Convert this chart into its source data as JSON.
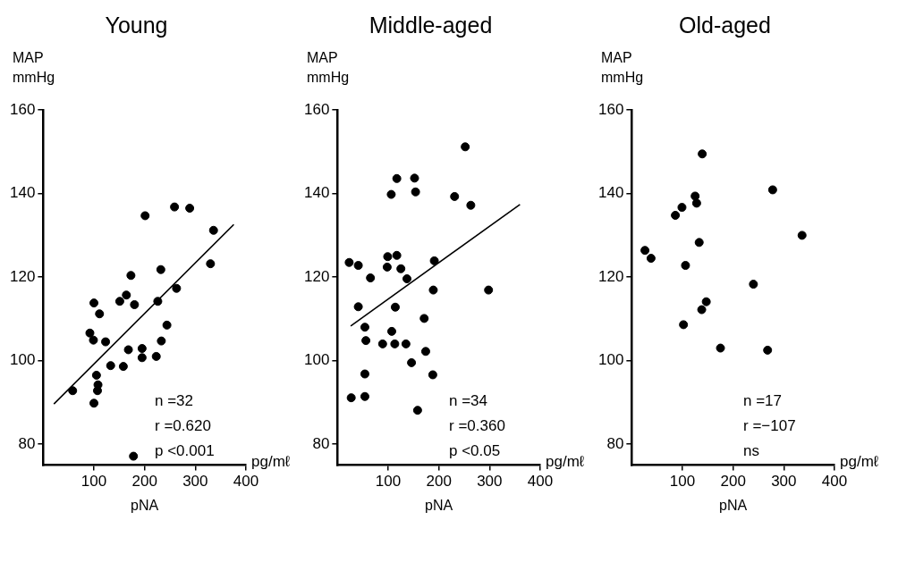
{
  "chart_data": [
    {
      "type": "scatter",
      "title": "Young",
      "ylabel": "MAP mmHg",
      "xlabel": "pNA",
      "annotations": [
        "pg/mℓ",
        "n =32",
        "r =0.620",
        "p <0.001"
      ],
      "xlim": [
        0,
        400
      ],
      "xticks": [
        100,
        200,
        300,
        400
      ],
      "ylim": [
        75,
        160
      ],
      "yticks": [
        80,
        100,
        120,
        140,
        160
      ],
      "grid": false,
      "legend": false,
      "series": [
        {
          "marker": "circle",
          "color": "#000000",
          "x": [
            58,
            100,
            105,
            108,
            107,
            100,
            111,
            92,
            99,
            123,
            133,
            158,
            168,
            151,
            164,
            173,
            180,
            178,
            195,
            195,
            201,
            223,
            226,
            232,
            233,
            244,
            263,
            259,
            289,
            330,
            336
          ],
          "values": [
            92.8,
            89.8,
            96.5,
            94.2,
            92.8,
            113.8,
            111.2,
            106.6,
            104.9,
            104.5,
            98.8,
            98.6,
            102.6,
            114.2,
            115.7,
            120.4,
            113.4,
            77.1,
            102.9,
            100.7,
            134.7,
            101,
            114.2,
            121.8,
            104.7,
            108.5,
            117.3,
            136.8,
            136.5,
            123.2,
            131.2
          ]
        },
        {
          "type": "line",
          "marker": "none",
          "color": "#000000",
          "x": [
            21,
            376
          ],
          "values": [
            89.6,
            132.6
          ]
        }
      ]
    },
    {
      "type": "scatter",
      "title": "Middle-aged",
      "ylabel": "MAP mmHg",
      "xlabel": "pNA",
      "annotations": [
        "pg/mℓ",
        "n =34",
        "r =0.360",
        "p <0.05"
      ],
      "xlim": [
        0,
        400
      ],
      "xticks": [
        100,
        200,
        300,
        400
      ],
      "ylim": [
        75,
        160
      ],
      "yticks": [
        80,
        100,
        120,
        140,
        160
      ],
      "grid": false,
      "legend": false,
      "series": [
        {
          "marker": "circle",
          "color": "#000000",
          "x": [
            23,
            41,
            27,
            41,
            65,
            54,
            56,
            54,
            54,
            89,
            98,
            99,
            106,
            107,
            113,
            114,
            117,
            117,
            125,
            137,
            135,
            146,
            152,
            154,
            158,
            171,
            174,
            188,
            189,
            191,
            231,
            252,
            263,
            298
          ],
          "values": [
            123.5,
            122.8,
            91.1,
            112.9,
            119.8,
            108,
            104.8,
            96.8,
            91.4,
            104,
            122.4,
            124.9,
            139.8,
            107,
            104,
            112.8,
            143.6,
            125.2,
            122,
            119.6,
            104,
            99.5,
            143.7,
            140.4,
            88.1,
            110.1,
            102.2,
            96.6,
            116.9,
            123.9,
            139.3,
            151.2,
            137.2,
            116.9
          ]
        },
        {
          "type": "line",
          "marker": "none",
          "color": "#000000",
          "x": [
            26,
            360
          ],
          "values": [
            108.3,
            137.4
          ]
        }
      ]
    },
    {
      "type": "scatter",
      "title": "Old-aged",
      "ylabel": "MAP mmHg",
      "xlabel": "pNA",
      "annotations": [
        "pg/mℓ",
        "n =17",
        "r =−107",
        "ns"
      ],
      "xlim": [
        0,
        400
      ],
      "xticks": [
        100,
        200,
        300,
        400
      ],
      "ylim": [
        75,
        160
      ],
      "yticks": [
        80,
        100,
        120,
        140,
        160
      ],
      "grid": false,
      "legend": false,
      "series": [
        {
          "marker": "circle",
          "color": "#000000",
          "x": [
            26,
            38,
            86,
            99,
            125,
            128,
            139,
            133,
            106,
            147,
            138,
            102,
            175,
            240,
            268,
            278,
            336
          ],
          "values": [
            126.4,
            124.5,
            134.8,
            136.7,
            139.4,
            137.7,
            149.5,
            128.3,
            122.8,
            114.1,
            112.2,
            108.6,
            103,
            118.3,
            102.5,
            140.9,
            130
          ]
        }
      ]
    }
  ]
}
